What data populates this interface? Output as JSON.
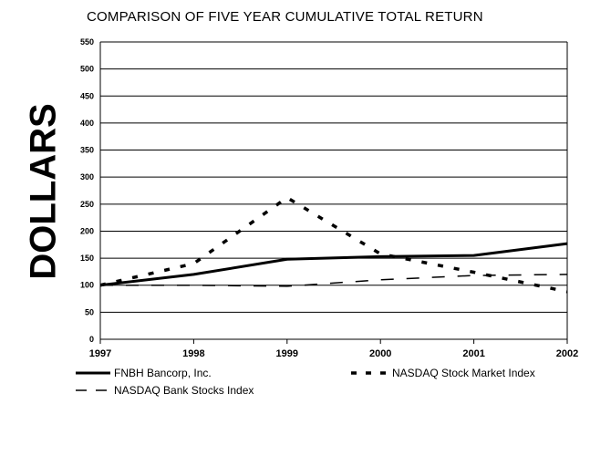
{
  "chart_data": {
    "type": "line",
    "title": "COMPARISON OF FIVE YEAR CUMULATIVE TOTAL RETURN",
    "xlabel": "",
    "ylabel": "DOLLARS",
    "x": [
      "1997",
      "1998",
      "1999",
      "2000",
      "2001",
      "2002"
    ],
    "ylim": [
      0,
      550
    ],
    "yticks": [
      "0",
      "50",
      "100",
      "150",
      "200",
      "250",
      "300",
      "350",
      "400",
      "450",
      "500",
      "550"
    ],
    "grid": true,
    "legend_position": "bottom",
    "series": [
      {
        "name": "FNBH Bancorp, Inc.",
        "values": [
          100,
          120,
          148,
          153,
          155,
          177
        ],
        "style": "solid",
        "color": "#000000"
      },
      {
        "name": "NASDAQ Stock Market Index",
        "values": [
          100,
          140,
          262,
          158,
          124,
          88
        ],
        "style": "dotted",
        "color": "#000000"
      },
      {
        "name": "NASDAQ Bank Stocks Index",
        "values": [
          100,
          100,
          98,
          110,
          118,
          120
        ],
        "style": "dashed",
        "color": "#000000"
      }
    ]
  }
}
